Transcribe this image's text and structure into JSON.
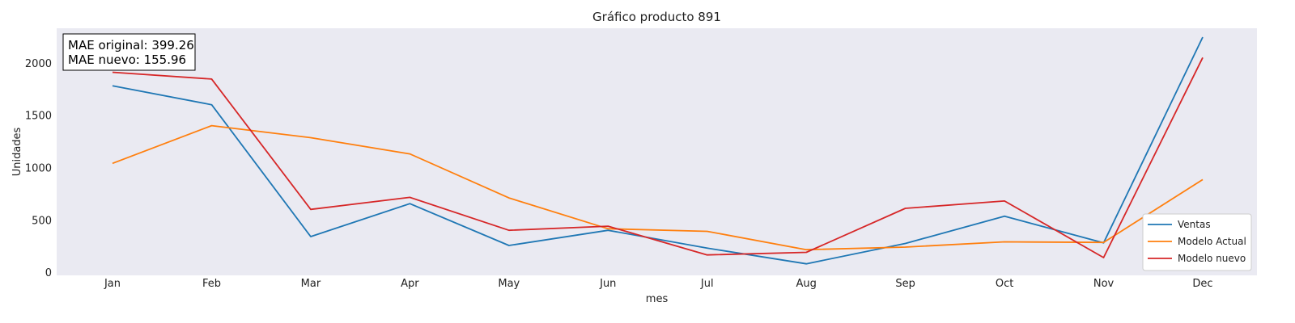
{
  "chart_data": {
    "type": "line",
    "title": "Gráfico producto 891",
    "xlabel": "mes",
    "ylabel": "Unidades",
    "categories": [
      "Jan",
      "Feb",
      "Mar",
      "Apr",
      "May",
      "Jun",
      "Jul",
      "Aug",
      "Sep",
      "Oct",
      "Nov",
      "Dec"
    ],
    "ylim": [
      -30,
      2330
    ],
    "yticks": [
      0,
      500,
      1000,
      1500,
      2000
    ],
    "grid": false,
    "legend_position": "lower-right",
    "series": [
      {
        "name": "Ventas",
        "color": "#1f77b4",
        "values": [
          1780,
          1600,
          340,
          655,
          255,
          400,
          230,
          80,
          275,
          535,
          280,
          2245
        ]
      },
      {
        "name": "Modelo Actual",
        "color": "#ff7f0e",
        "values": [
          1040,
          1400,
          1285,
          1130,
          710,
          415,
          390,
          215,
          240,
          290,
          285,
          885
        ]
      },
      {
        "name": "Modelo nuevo",
        "color": "#d62728",
        "values": [
          1910,
          1845,
          600,
          715,
          400,
          440,
          165,
          190,
          610,
          680,
          140,
          2050
        ]
      }
    ],
    "annotation": {
      "line1": "MAE original: 399.26",
      "line2": "MAE nuevo: 155.96"
    }
  },
  "colors": {
    "plot_background": "#eaeaf2"
  }
}
